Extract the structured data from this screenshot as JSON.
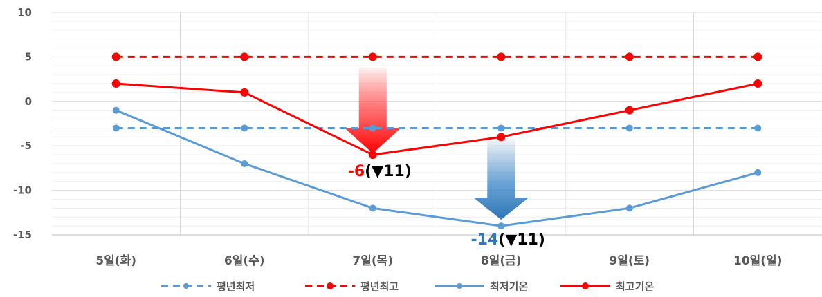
{
  "chart_data": {
    "type": "line",
    "categories": [
      "5일(화)",
      "6일(수)",
      "7일(목)",
      "8일(금)",
      "9일(토)",
      "10일(일)"
    ],
    "ylim": [
      -15,
      10
    ],
    "yticks": [
      10,
      5,
      0,
      -5,
      -10,
      -15
    ],
    "grid": true,
    "legend_position": "bottom",
    "series": [
      {
        "name": "평년최저",
        "values": [
          -3,
          -3,
          -3,
          -3,
          -3,
          -3
        ],
        "color": "#5b9bd5",
        "dashed": true
      },
      {
        "name": "평년최고",
        "values": [
          5,
          5,
          5,
          5,
          5,
          5
        ],
        "color": "#ff0000",
        "dashed": true
      },
      {
        "name": "최저기온",
        "values": [
          -1,
          -7,
          -12,
          -14,
          -12,
          -8
        ],
        "color": "#5b9bd5",
        "dashed": false
      },
      {
        "name": "최고기온",
        "values": [
          2,
          1,
          -6,
          -4,
          -1,
          2
        ],
        "color": "#ff0000",
        "dashed": false
      }
    ],
    "annotations": [
      {
        "category": "7일(목)",
        "value_text": "-6",
        "drop_text": "(▼11)",
        "value_color": "#ff0000",
        "arrow_color": "#ff0000"
      },
      {
        "category": "8일(금)",
        "value_text": "-14",
        "drop_text": "(▼11)",
        "value_color": "#2e75b6",
        "arrow_color": "#2e75b6"
      }
    ]
  }
}
